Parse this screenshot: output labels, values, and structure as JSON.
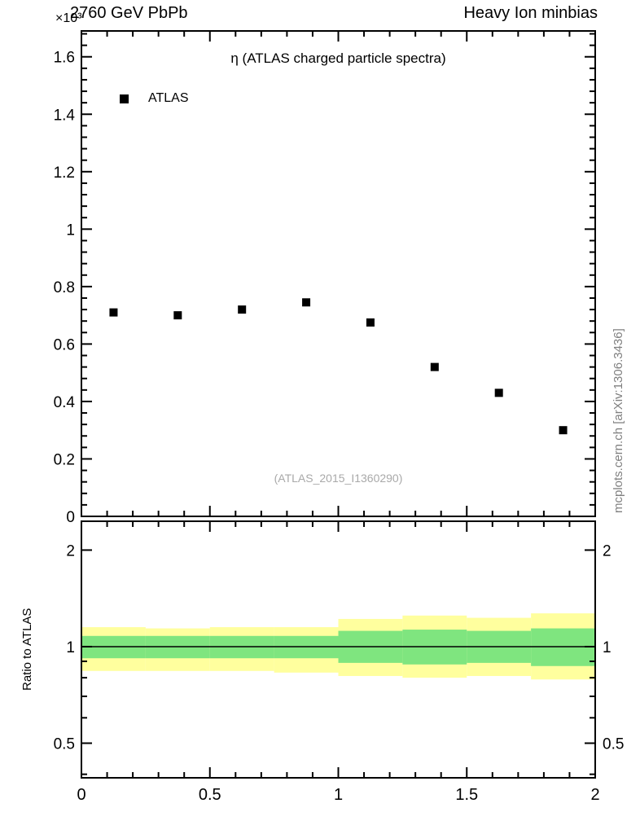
{
  "header": {
    "exponent": "×10³",
    "left": "2760 GeV PbPb",
    "right": "Heavy Ion minbias"
  },
  "main_plot": {
    "title": "η (ATLAS charged particle spectra)",
    "legend": [
      {
        "label": "ATLAS",
        "marker": "filled-square",
        "color": "#000000"
      }
    ],
    "watermark": "(ATLAS_2015_I1360290)"
  },
  "ratio_plot": {
    "ylabel": "Ratio to ATLAS"
  },
  "side_note": "mcplots.cern.ch [arXiv:1306.3436]",
  "chart_data": [
    {
      "type": "scatter",
      "panel": "main",
      "title": "η (ATLAS charged particle spectra)",
      "xlim": [
        0,
        2
      ],
      "ylim": [
        0,
        1.69
      ],
      "y_unit_exponent": "×10³",
      "xticks": [
        0,
        0.5,
        1,
        1.5,
        2
      ],
      "x_minor_step": 0.1,
      "yticks": [
        0,
        0.2,
        0.4,
        0.6,
        0.8,
        1,
        1.2,
        1.4,
        1.6
      ],
      "ytick_labels": [
        "0",
        "0.2",
        "0.4",
        "0.6",
        "0.8",
        "1",
        "1.2",
        "1.4",
        "1.6"
      ],
      "y_minor_step": 0.04,
      "grid": false,
      "legend_position": "top-left",
      "series": [
        {
          "name": "ATLAS",
          "marker": "filled-square",
          "color": "#000000",
          "x": [
            0.125,
            0.375,
            0.625,
            0.875,
            1.125,
            1.375,
            1.625,
            1.875
          ],
          "y": [
            0.71,
            0.7,
            0.72,
            0.745,
            0.675,
            0.52,
            0.43,
            0.3
          ]
        }
      ]
    },
    {
      "type": "band",
      "panel": "ratio",
      "ylabel": "Ratio to ATLAS",
      "yscale": "log",
      "xlim": [
        0,
        2
      ],
      "ylim": [
        0.39,
        2.46
      ],
      "xticks": [
        0,
        0.5,
        1,
        1.5,
        2
      ],
      "xtick_labels": [
        "0",
        "0.5",
        "1",
        "1.5",
        "2"
      ],
      "x_minor_step": 0.1,
      "yticks": [
        0.5,
        1,
        2
      ],
      "ytick_labels": [
        "0.5",
        "1",
        "2"
      ],
      "y_minor_ticks": [
        0.4,
        0.6,
        0.7,
        0.8,
        0.9
      ],
      "reference_line": 1,
      "colors": {
        "outer_band": "#ffff9e",
        "inner_band": "#7fe57f"
      },
      "bins": [
        {
          "x0": 0.0,
          "x1": 0.25,
          "yellow": [
            0.84,
            1.15
          ],
          "green": [
            0.92,
            1.08
          ]
        },
        {
          "x0": 0.25,
          "x1": 0.5,
          "yellow": [
            0.84,
            1.14
          ],
          "green": [
            0.92,
            1.08
          ]
        },
        {
          "x0": 0.5,
          "x1": 0.75,
          "yellow": [
            0.84,
            1.15
          ],
          "green": [
            0.92,
            1.08
          ]
        },
        {
          "x0": 0.75,
          "x1": 1.0,
          "yellow": [
            0.83,
            1.15
          ],
          "green": [
            0.92,
            1.08
          ]
        },
        {
          "x0": 1.0,
          "x1": 1.25,
          "yellow": [
            0.81,
            1.22
          ],
          "green": [
            0.89,
            1.12
          ]
        },
        {
          "x0": 1.25,
          "x1": 1.5,
          "yellow": [
            0.8,
            1.25
          ],
          "green": [
            0.88,
            1.13
          ]
        },
        {
          "x0": 1.5,
          "x1": 1.75,
          "yellow": [
            0.81,
            1.23
          ],
          "green": [
            0.89,
            1.12
          ]
        },
        {
          "x0": 1.75,
          "x1": 2.0,
          "yellow": [
            0.79,
            1.27
          ],
          "green": [
            0.87,
            1.14
          ]
        }
      ]
    }
  ]
}
